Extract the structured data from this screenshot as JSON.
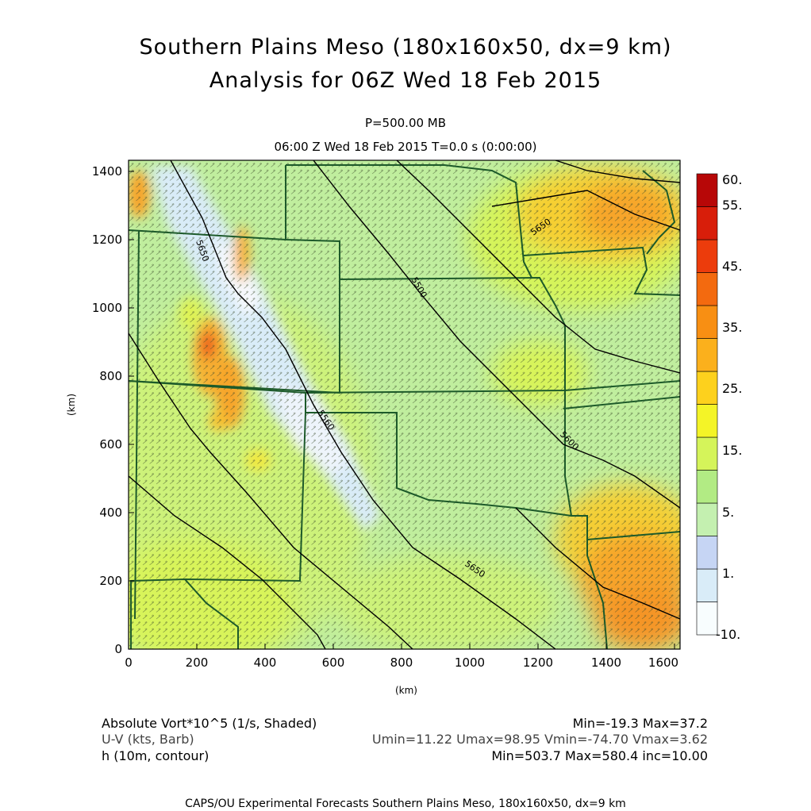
{
  "header": {
    "title_line1": "Southern Plains Meso (180x160x50, dx=9 km)",
    "title_line2": "Analysis for 06Z Wed 18 Feb 2015",
    "level": "P=500.00 MB",
    "time": "06:00 Z Wed 18 Feb 2015    T=0.0 s (0:00:00)"
  },
  "axes": {
    "x_unit": "(km)",
    "y_unit": "(km)",
    "x_ticks": [
      "0",
      "200",
      "400",
      "600",
      "800",
      "1000",
      "1200",
      "1400",
      "1600"
    ],
    "y_ticks": [
      "0",
      "200",
      "400",
      "600",
      "800",
      "1000",
      "1200",
      "1400"
    ]
  },
  "colorbar": {
    "labels": [
      "60.",
      "55.",
      "45.",
      "35.",
      "25.",
      "15.",
      "5.",
      "1.",
      "-10."
    ],
    "colors": [
      "#f8fdfe",
      "#d9ecf8",
      "#c6d5f4",
      "#c4f0b0",
      "#b2eb84",
      "#d5f45a",
      "#f4f427",
      "#fdd11d",
      "#fbb01c",
      "#f88f13",
      "#f36a0f",
      "#ec3c0c",
      "#d81e0a",
      "#b70707"
    ]
  },
  "contours": {
    "labels": [
      "5650",
      "5500",
      "5560",
      "5600",
      "5650",
      "5650"
    ],
    "color": "#000000"
  },
  "legend": {
    "vort_label": "Absolute Vort*10^5 (1/s, Shaded)",
    "vort_stats": "Min=-19.3 Max=37.2",
    "wind_label": "U-V (kts, Barb)",
    "wind_stats": "Umin=11.22 Umax=98.95 Vmin=-74.70 Vmax=3.62",
    "height_label": "h (10m, contour)",
    "height_stats": "Min=503.7 Max=580.4 inc=10.00"
  },
  "footer": {
    "credit": "CAPS/OU Experimental Forecasts  Southern Plains Meso, 180x160x50, dx=9 km"
  },
  "map_colors": {
    "background_field": "#c4f0b0",
    "boundary": "#1d5a2a",
    "barb": "#3a4a2a"
  }
}
